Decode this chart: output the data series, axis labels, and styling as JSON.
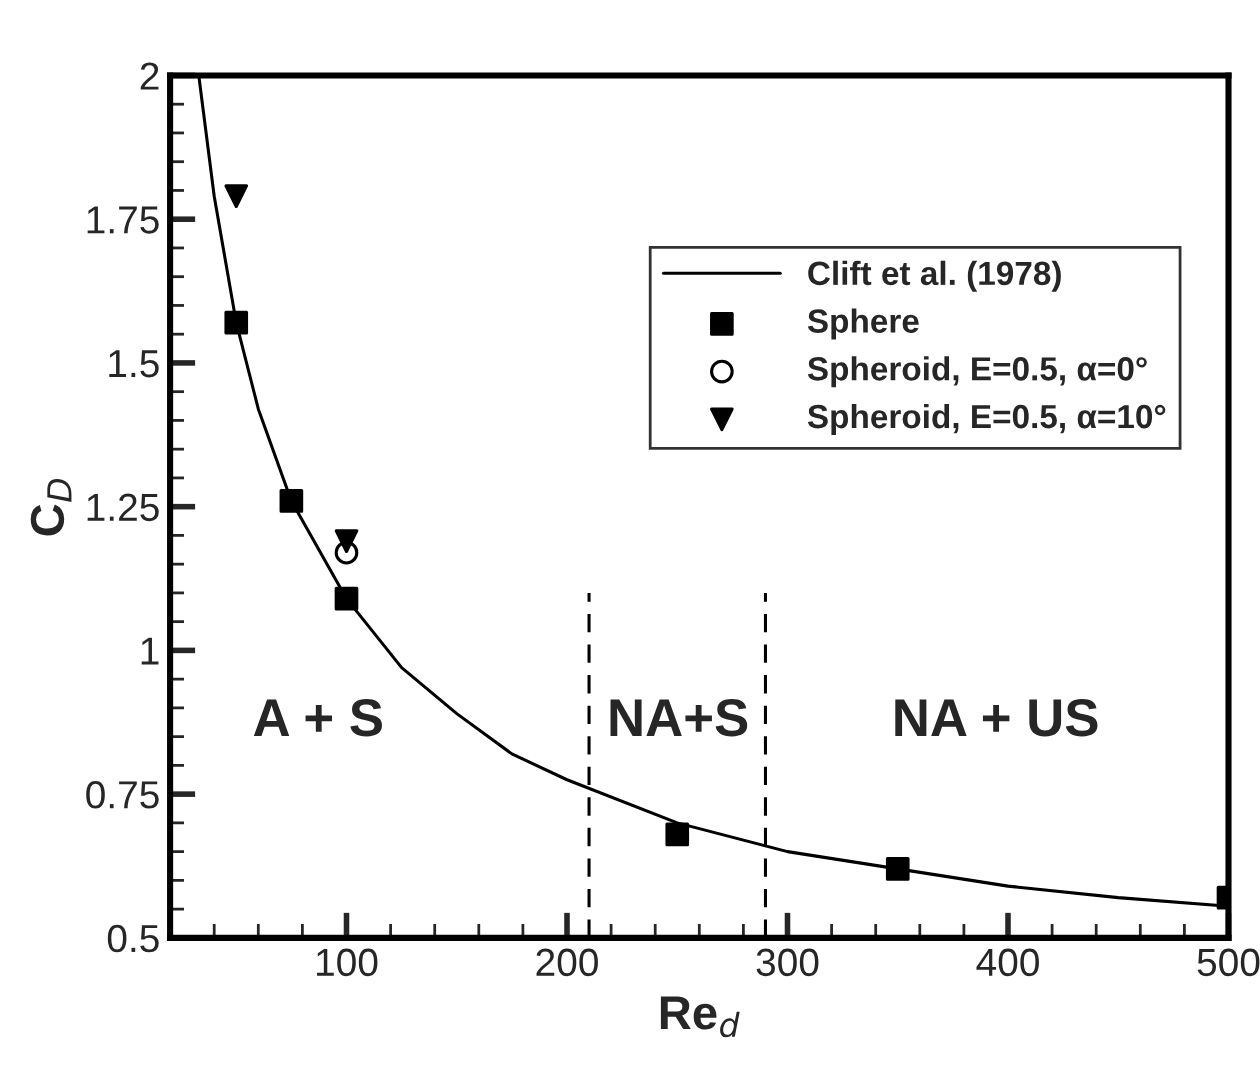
{
  "chart_data": {
    "type": "scatter",
    "xlabel": "Re$_{d}$",
    "ylabel": "C$_{D}$",
    "xlim": [
      20,
      500
    ],
    "xticks": [
      100,
      200,
      300,
      400,
      500
    ],
    "ylim": [
      0.5,
      2
    ],
    "yticks": [
      0.5,
      0.75,
      1,
      1.25,
      1.5,
      1.75,
      2
    ],
    "series": [
      {
        "name": "Clift et al. (1978)",
        "type": "line",
        "color": "#000000",
        "marker": "none",
        "x": [
          33,
          40,
          50,
          60,
          75,
          100,
          125,
          150,
          175,
          200,
          250,
          300,
          350,
          400,
          450,
          500
        ],
        "values": [
          2.0,
          1.79,
          1.57,
          1.42,
          1.26,
          1.09,
          0.97,
          0.89,
          0.82,
          0.775,
          0.7,
          0.65,
          0.62,
          0.59,
          0.57,
          0.555
        ]
      },
      {
        "name": "Sphere",
        "color": "#000000",
        "marker": "square",
        "x": [
          50,
          75,
          100,
          250,
          350,
          500
        ],
        "values": [
          1.57,
          1.26,
          1.09,
          0.68,
          0.62,
          0.57
        ]
      },
      {
        "name": "Spheroid, E=0.5, α=0°",
        "color": "#000000",
        "marker": "circle",
        "x": [
          100
        ],
        "values": [
          1.17
        ]
      },
      {
        "name": "Spheroid, E=0.5, α=10°",
        "color": "#000000",
        "marker": "triangle",
        "x": [
          50,
          100
        ],
        "values": [
          1.79,
          1.19
        ]
      }
    ],
    "ref_lines": [
      {
        "axis": "x",
        "value": 210,
        "line_style": "dashed",
        "color": "#000000"
      },
      {
        "axis": "x",
        "value": 290,
        "line_style": "dashed",
        "color": "#000000"
      }
    ],
    "annotations": [
      "A + S",
      "NA+S",
      "NA + US"
    ],
    "legend": "top right",
    "grid": false
  }
}
